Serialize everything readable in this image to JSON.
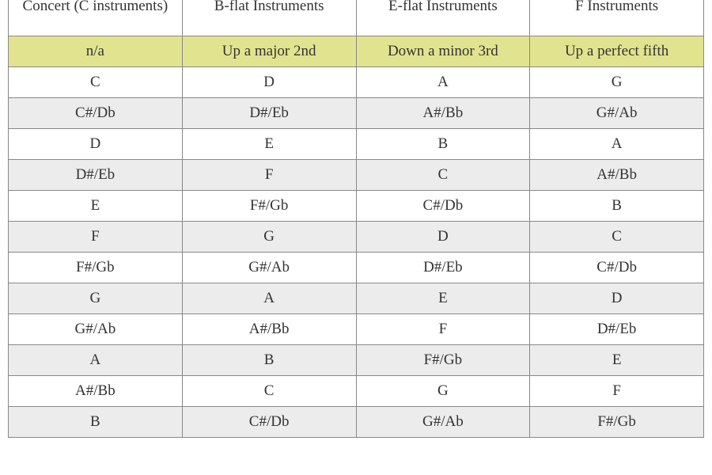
{
  "table": {
    "type": "table",
    "columns": [
      {
        "label": "Concert (C\ninstruments)",
        "width_pct": 25,
        "align": "center"
      },
      {
        "label": "B-flat Instruments",
        "width_pct": 25,
        "align": "center"
      },
      {
        "label": "E-flat Instruments",
        "width_pct": 25,
        "align": "center"
      },
      {
        "label": "F Instruments",
        "width_pct": 25,
        "align": "center"
      }
    ],
    "header_fontsize_pt": 15,
    "body_fontsize_pt": 15,
    "text_color": "#333333",
    "border_color": "#888888",
    "row_colors": {
      "rule_row": "#e2e38f",
      "band": "#ececec",
      "plain": "#ffffff"
    },
    "rule_row": [
      "n/a",
      "Up a major 2nd",
      "Down a minor 3rd",
      "Up a perfect fifth"
    ],
    "rows": [
      {
        "cells": [
          "C",
          "D",
          "A",
          "G"
        ],
        "band": false
      },
      {
        "cells": [
          "C#/Db",
          "D#/Eb",
          "A#/Bb",
          "G#/Ab"
        ],
        "band": true
      },
      {
        "cells": [
          "D",
          "E",
          "B",
          "A"
        ],
        "band": false
      },
      {
        "cells": [
          "D#/Eb",
          "F",
          "C",
          "A#/Bb"
        ],
        "band": true
      },
      {
        "cells": [
          "E",
          "F#/Gb",
          "C#/Db",
          "B"
        ],
        "band": false
      },
      {
        "cells": [
          "F",
          "G",
          "D",
          "C"
        ],
        "band": true
      },
      {
        "cells": [
          "F#/Gb",
          "G#/Ab",
          "D#/Eb",
          "C#/Db"
        ],
        "band": false
      },
      {
        "cells": [
          "G",
          "A",
          "E",
          "D"
        ],
        "band": true
      },
      {
        "cells": [
          "G#/Ab",
          "A#/Bb",
          "F",
          "D#/Eb"
        ],
        "band": false
      },
      {
        "cells": [
          "A",
          "B",
          "F#/Gb",
          "E"
        ],
        "band": true
      },
      {
        "cells": [
          "A#/Bb",
          "C",
          "G",
          "F"
        ],
        "band": false
      },
      {
        "cells": [
          "B",
          "C#/Db",
          "G#/Ab",
          "F#/Gb"
        ],
        "band": true
      }
    ]
  }
}
